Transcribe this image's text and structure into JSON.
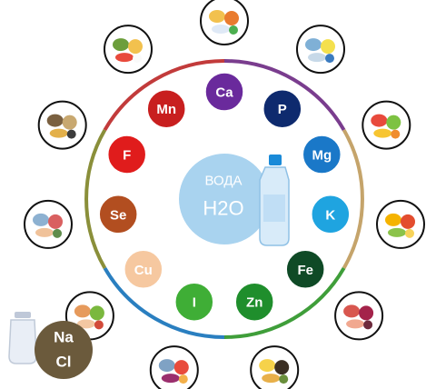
{
  "center": {
    "line1": "ВОДА",
    "line2": "H2O"
  },
  "elements": [
    {
      "symbol": "Ca",
      "color": "#6a2a9c"
    },
    {
      "symbol": "P",
      "color": "#0e2a6e"
    },
    {
      "symbol": "Mg",
      "color": "#1a78c8"
    },
    {
      "symbol": "K",
      "color": "#1fa4e0"
    },
    {
      "symbol": "Fe",
      "color": "#0f4a26"
    },
    {
      "symbol": "Zn",
      "color": "#1f8e2c"
    },
    {
      "symbol": "I",
      "color": "#3fae36"
    },
    {
      "symbol": "Cu",
      "color": "#f6c8a0"
    },
    {
      "symbol": "Se",
      "color": "#b24e20"
    },
    {
      "symbol": "F",
      "color": "#e01c1c"
    },
    {
      "symbol": "Mn",
      "color": "#c81f1f"
    }
  ],
  "salt": {
    "line1": "Na",
    "line2": "Cl",
    "color": "#6b5a3c"
  },
  "food_icons": [
    "dairy-foods-icon",
    "fish-lemon-icon",
    "fruit-bowl-icon",
    "fruits-citrus-icon",
    "meat-beet-icon",
    "bread-grain-icon",
    "fish-fruit-icon",
    "poultry-beans-icon",
    "fish-meat-icon",
    "fish-potato-icon",
    "vegetable-fruit-icon"
  ],
  "ring_colors": [
    "#7a3d8e",
    "#c5a46b",
    "#3f9e3a",
    "#2a7fc0",
    "#8a8f3a",
    "#c23b3b"
  ]
}
